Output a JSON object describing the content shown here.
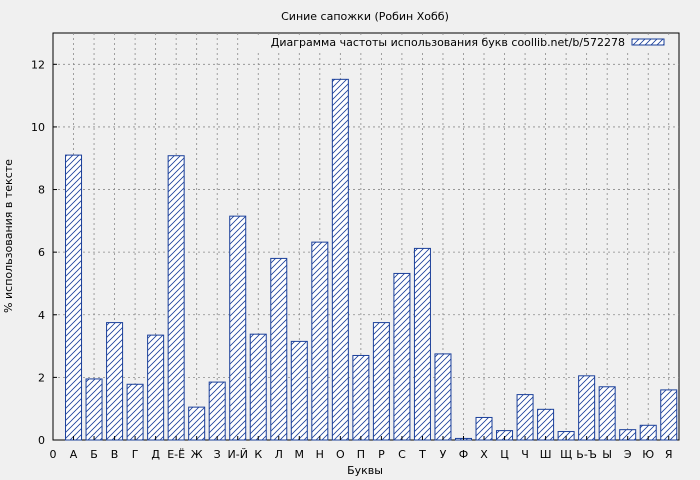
{
  "chart_data": {
    "type": "bar",
    "title": "Синие сапожки (Робин Хобб)",
    "xlabel": "Буквы",
    "ylabel": "% использования в тексте",
    "ylim": [
      0,
      13
    ],
    "yticks": [
      0,
      2,
      4,
      6,
      8,
      10,
      12
    ],
    "grid": true,
    "legend_position": "top-right",
    "x_start_label": "0",
    "categories": [
      "А",
      "Б",
      "В",
      "Г",
      "Д",
      "Е-Ё",
      "Ж",
      "З",
      "И-Й",
      "К",
      "Л",
      "М",
      "Н",
      "О",
      "П",
      "Р",
      "С",
      "Т",
      "У",
      "Ф",
      "Х",
      "Ц",
      "Ч",
      "Ш",
      "Щ",
      "Ь-Ъ",
      "Ы",
      "Э",
      "Ю",
      "Я"
    ],
    "series": [
      {
        "name": "Диаграмма частоты использования букв coollib.net/b/572278",
        "color": "#1a3f9a",
        "values": [
          9.1,
          1.95,
          3.75,
          1.78,
          3.35,
          9.08,
          1.05,
          1.85,
          7.15,
          3.38,
          5.8,
          3.15,
          6.32,
          11.52,
          2.7,
          3.75,
          5.32,
          6.12,
          2.75,
          0.05,
          0.72,
          0.3,
          1.45,
          0.98,
          0.27,
          2.05,
          1.7,
          0.33,
          0.47,
          1.6
        ]
      }
    ]
  }
}
